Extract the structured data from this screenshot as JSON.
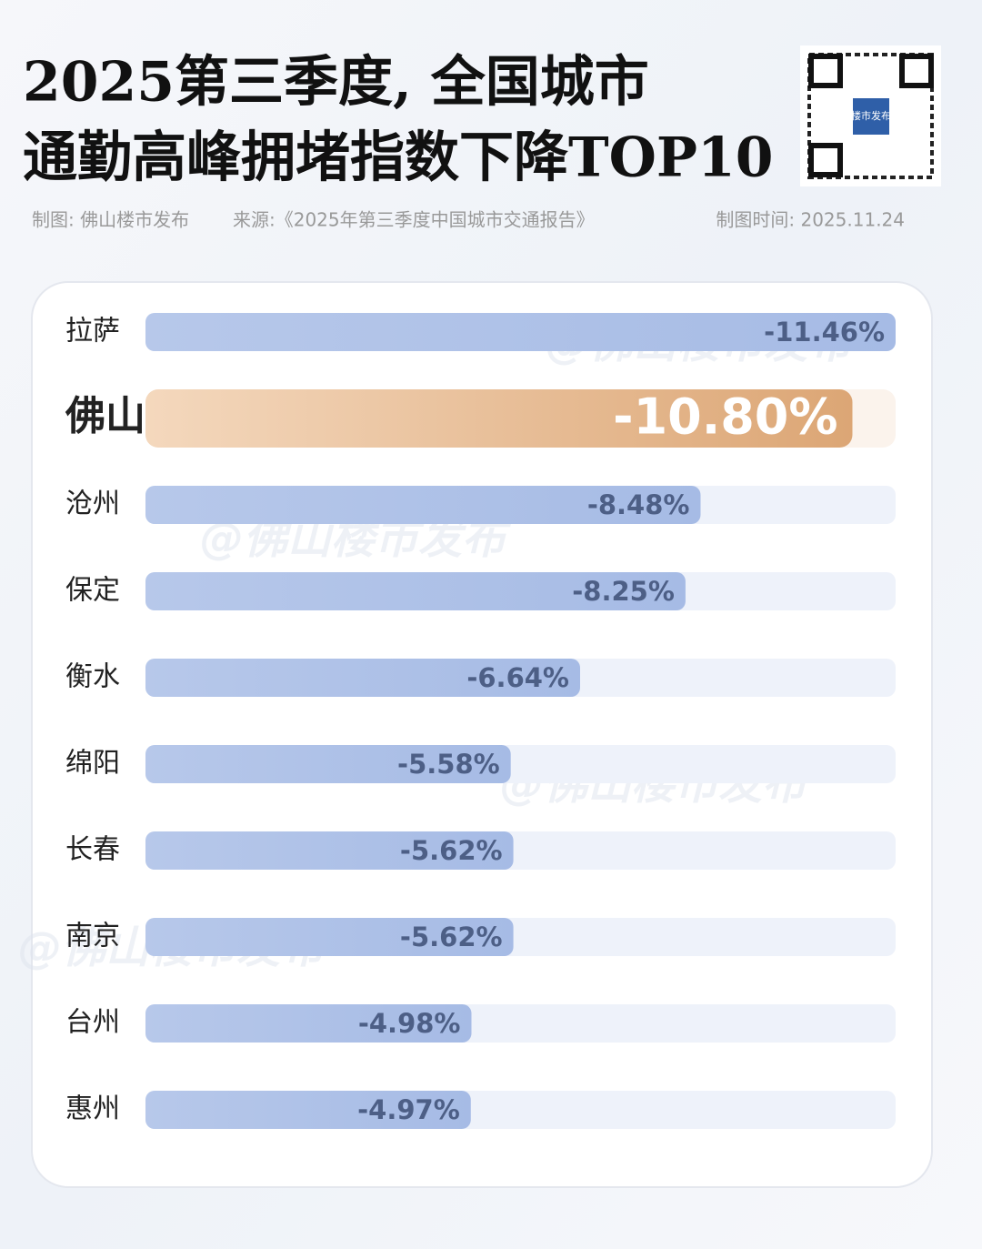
{
  "chart_data": {
    "type": "bar",
    "title": [
      "2025第三季度, 全国城市",
      "通勤高峰拥堵指数下降TOP10"
    ],
    "credit": "制图: 佛山楼市发布",
    "source": "来源:《2025年第三季度中国城市交通报告》",
    "date": "制图时间: 2025.11.24",
    "qr_label": "楼市发布",
    "watermark": "@佛山楼市发布",
    "categories": [
      "拉萨",
      "佛山",
      "沧州",
      "保定",
      "衡水",
      "绵阳",
      "长春",
      "南京",
      "台州",
      "惠州"
    ],
    "values": [
      -11.46,
      -10.8,
      -8.48,
      -8.25,
      -6.64,
      -5.58,
      -5.62,
      -5.62,
      -4.98,
      -4.97
    ],
    "value_labels": [
      "-11.46%",
      "-10.80%",
      "-8.48%",
      "-8.25%",
      "-6.64%",
      "-5.58%",
      "-5.62%",
      "-5.62%",
      "-4.98%",
      "-4.97%"
    ],
    "color": "#a9bee6",
    "highlight_color": "#e7b17e",
    "highlight": 1
  }
}
